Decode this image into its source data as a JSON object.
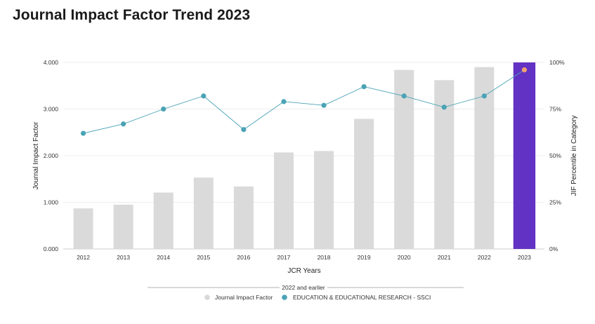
{
  "title": "Journal Impact Factor Trend 2023",
  "chart_data": {
    "type": "bar",
    "categories": [
      "2012",
      "2013",
      "2014",
      "2015",
      "2016",
      "2017",
      "2018",
      "2019",
      "2020",
      "2021",
      "2022",
      "2023"
    ],
    "series": [
      {
        "name": "Journal Impact Factor",
        "type": "bar",
        "values": [
          0.87,
          0.95,
          1.21,
          1.53,
          1.34,
          2.07,
          2.1,
          2.79,
          3.84,
          3.62,
          3.9,
          4.0
        ],
        "color": "#dadada",
        "highlight_index": 11,
        "highlight_color": "#6232c4"
      },
      {
        "name": "EDUCATION & EDUCATIONAL RESEARCH - SSCI",
        "type": "line",
        "axis": "right",
        "values": [
          62,
          67,
          75,
          82,
          64,
          79,
          77,
          87,
          82,
          76,
          82,
          96
        ],
        "color": "#4aa3b5",
        "highlight_index": 11,
        "highlight_color": "#f0a070"
      }
    ],
    "xlabel": "JCR Years",
    "ylabel": "Journal Impact Factor",
    "ylabel_right": "JIF Percentile in Category",
    "ylim": [
      0,
      4
    ],
    "ylim_right": [
      0,
      100
    ],
    "yticks": [
      "0.000",
      "1.000",
      "2.000",
      "3.000",
      "4.000"
    ],
    "yticks_right": [
      "0%",
      "25%",
      "50%",
      "75%",
      "100%"
    ],
    "legend_title": "2022 and earlier",
    "legend_position": "bottom",
    "grid": true
  }
}
